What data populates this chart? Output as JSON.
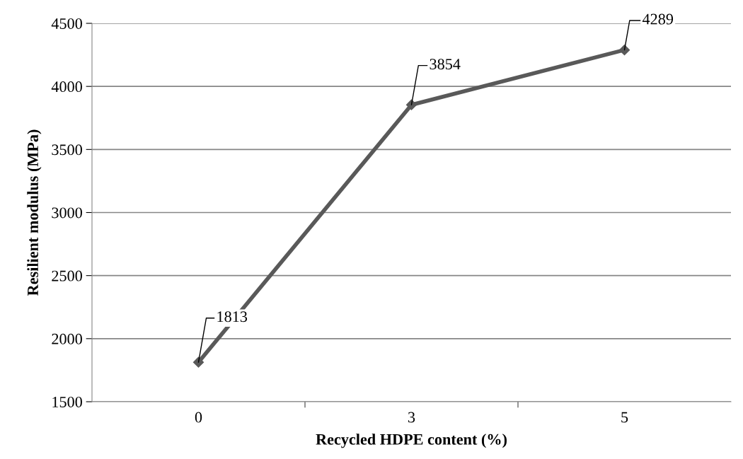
{
  "chart_data": {
    "type": "line",
    "xlabel": "Recycled HDPE content (%)",
    "ylabel": "Resilient modulus (MPa)",
    "categories": [
      "0",
      "3",
      "5"
    ],
    "series": [
      {
        "color": "#595959",
        "values": [
          1813,
          3854,
          4289
        ]
      }
    ],
    "ylim": [
      1500,
      4500
    ],
    "yticks": [
      1500,
      2000,
      2500,
      3000,
      3500,
      4000,
      4500
    ],
    "grid": "y",
    "marker": "diamond",
    "line_style": "solid",
    "data_labels": true
  }
}
